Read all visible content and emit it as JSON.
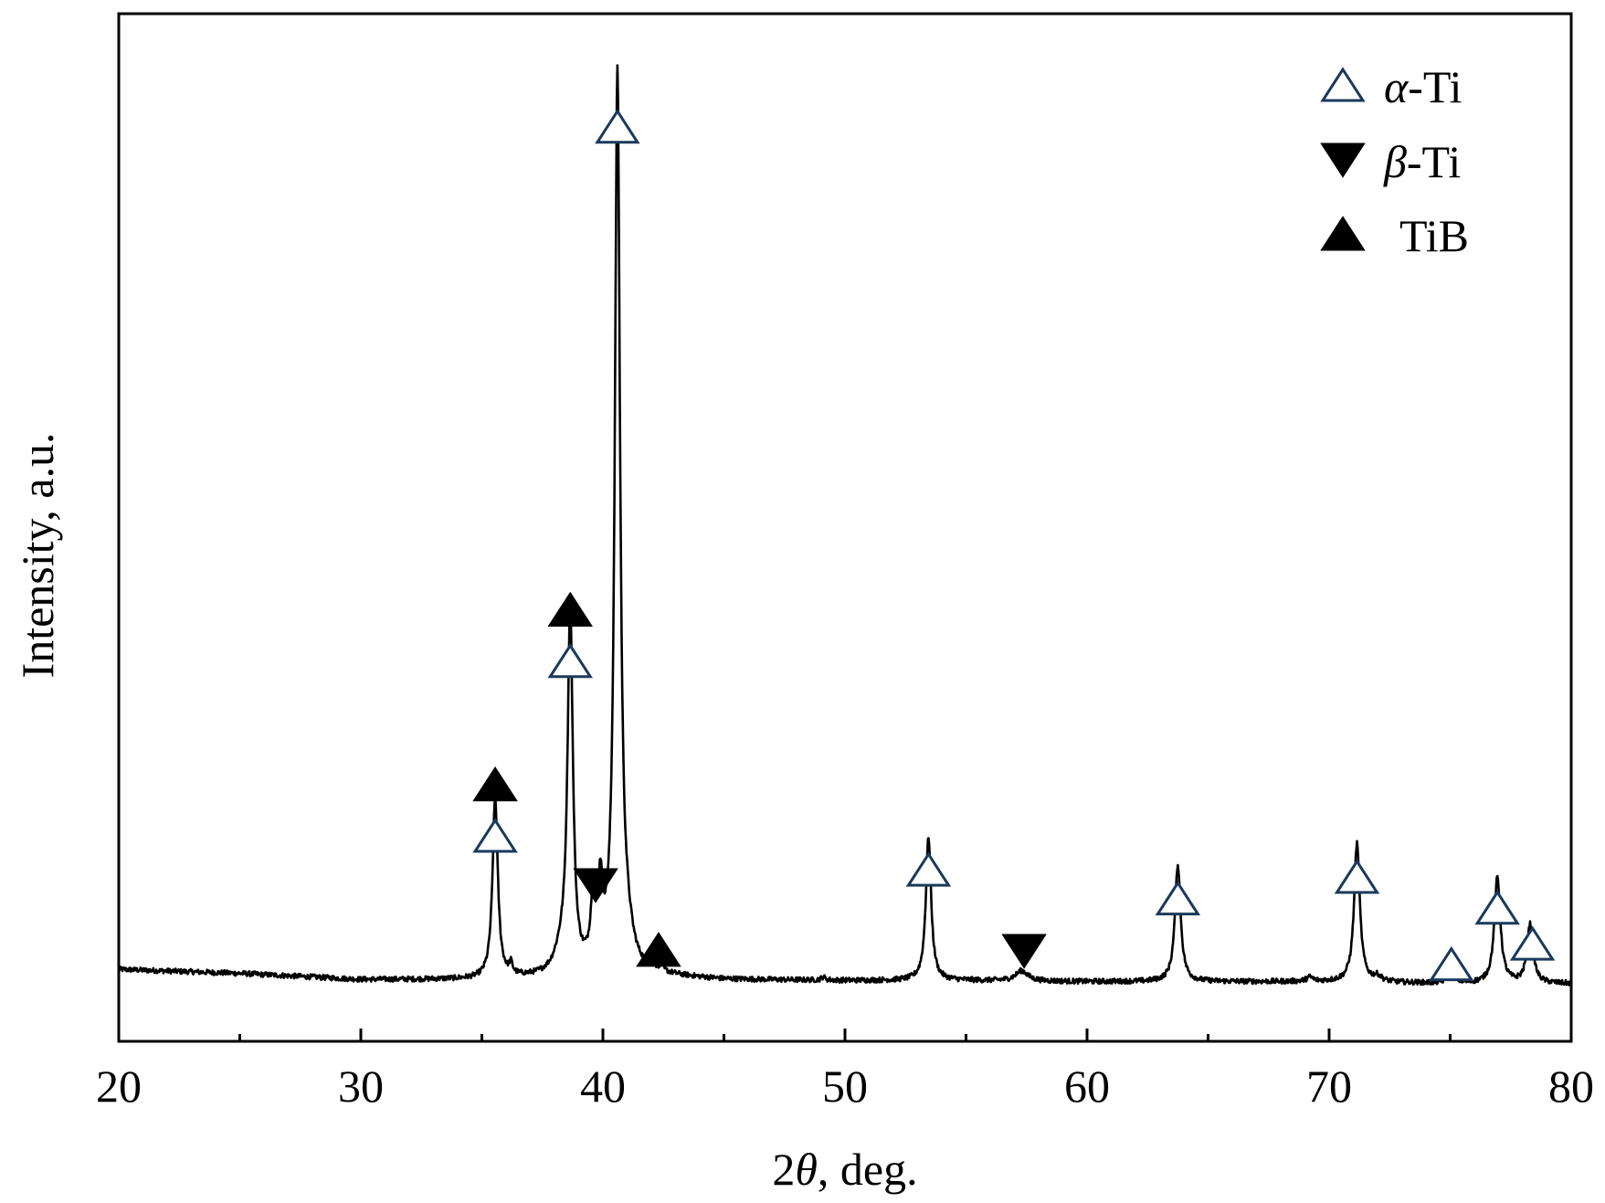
{
  "chart_data": {
    "type": "line",
    "xlabel": "2θ, deg.",
    "xlabel_var": "θ",
    "ylabel": "Intensity, a.u.",
    "xlim": [
      20,
      80
    ],
    "ylim": [
      0,
      100
    ],
    "x_major_ticks": [
      20,
      30,
      40,
      50,
      60,
      70,
      80
    ],
    "x_minor_ticks": [
      25,
      35,
      45,
      55,
      65,
      75
    ],
    "y_tick_labels": "none",
    "grid": false,
    "legend_position": "top-right",
    "legend": [
      {
        "symbol": "open-triangle-up",
        "label": "α-Ti",
        "greek": "α",
        "suffix": "-Ti"
      },
      {
        "symbol": "filled-triangle-down",
        "label": "β-Ti",
        "greek": "β",
        "suffix": "-Ti"
      },
      {
        "symbol": "filled-triangle-up",
        "label": "TiB",
        "greek": "",
        "suffix": "TiB"
      }
    ],
    "series": [
      {
        "baseline": [
          [
            20,
            7.0
          ],
          [
            25,
            6.6
          ],
          [
            30,
            6.0
          ],
          [
            35,
            6.0
          ],
          [
            42,
            6.4
          ],
          [
            45,
            6.0
          ],
          [
            50,
            5.9
          ],
          [
            55,
            5.9
          ],
          [
            60,
            5.8
          ],
          [
            65,
            5.8
          ],
          [
            70,
            5.8
          ],
          [
            75,
            5.6
          ],
          [
            80,
            5.6
          ]
        ],
        "peaks": [
          {
            "x": 35.55,
            "height": 17.5,
            "width": 0.13
          },
          {
            "x": 36.2,
            "height": 1.0,
            "width": 0.08
          },
          {
            "x": 38.65,
            "height": 35.0,
            "width": 0.13
          },
          {
            "x": 38.3,
            "height": 2.0,
            "width": 0.35
          },
          {
            "x": 39.6,
            "height": 6.5,
            "width": 0.12
          },
          {
            "x": 39.9,
            "height": 7.2,
            "width": 0.12
          },
          {
            "x": 40.6,
            "height": 87.0,
            "width": 0.13
          },
          {
            "x": 41.0,
            "height": 2.5,
            "width": 0.3
          },
          {
            "x": 42.0,
            "height": 0.7,
            "width": 0.1
          },
          {
            "x": 42.4,
            "height": 0.5,
            "width": 0.1
          },
          {
            "x": 49.1,
            "height": 0.3,
            "width": 0.1
          },
          {
            "x": 53.45,
            "height": 14.0,
            "width": 0.13
          },
          {
            "x": 57.3,
            "height": 1.0,
            "width": 0.3
          },
          {
            "x": 63.75,
            "height": 11.4,
            "width": 0.14
          },
          {
            "x": 69.2,
            "height": 0.4,
            "width": 0.15
          },
          {
            "x": 71.15,
            "height": 13.5,
            "width": 0.14
          },
          {
            "x": 72.0,
            "height": 0.5,
            "width": 0.2
          },
          {
            "x": 75.05,
            "height": 1.4,
            "width": 0.15
          },
          {
            "x": 76.95,
            "height": 10.3,
            "width": 0.15
          },
          {
            "x": 78.3,
            "height": 5.7,
            "width": 0.15
          }
        ],
        "noise_amplitude": 0.25
      }
    ],
    "markers": [
      {
        "x": 35.55,
        "y": 20.0,
        "symbol": "open-triangle-up"
      },
      {
        "x": 35.55,
        "y": 25.0,
        "symbol": "filled-triangle-up"
      },
      {
        "x": 38.65,
        "y": 37.0,
        "symbol": "open-triangle-up"
      },
      {
        "x": 38.65,
        "y": 42.0,
        "symbol": "filled-triangle-up"
      },
      {
        "x": 39.7,
        "y": 15.2,
        "symbol": "filled-triangle-down"
      },
      {
        "x": 40.6,
        "y": 89.0,
        "symbol": "open-triangle-up"
      },
      {
        "x": 42.3,
        "y": 8.9,
        "symbol": "filled-triangle-up"
      },
      {
        "x": 53.45,
        "y": 16.7,
        "symbol": "open-triangle-up"
      },
      {
        "x": 57.4,
        "y": 8.8,
        "symbol": "filled-triangle-down"
      },
      {
        "x": 63.75,
        "y": 13.9,
        "symbol": "open-triangle-up"
      },
      {
        "x": 71.15,
        "y": 16.0,
        "symbol": "open-triangle-up"
      },
      {
        "x": 75.05,
        "y": 7.5,
        "symbol": "open-triangle-up"
      },
      {
        "x": 76.95,
        "y": 13.0,
        "symbol": "open-triangle-up"
      },
      {
        "x": 78.4,
        "y": 9.5,
        "symbol": "open-triangle-up"
      }
    ],
    "colors": {
      "line": "#000000",
      "marker_fill": "#000000",
      "marker_open_fill": "#ffffff",
      "marker_edge": "#1a3a5c"
    }
  }
}
